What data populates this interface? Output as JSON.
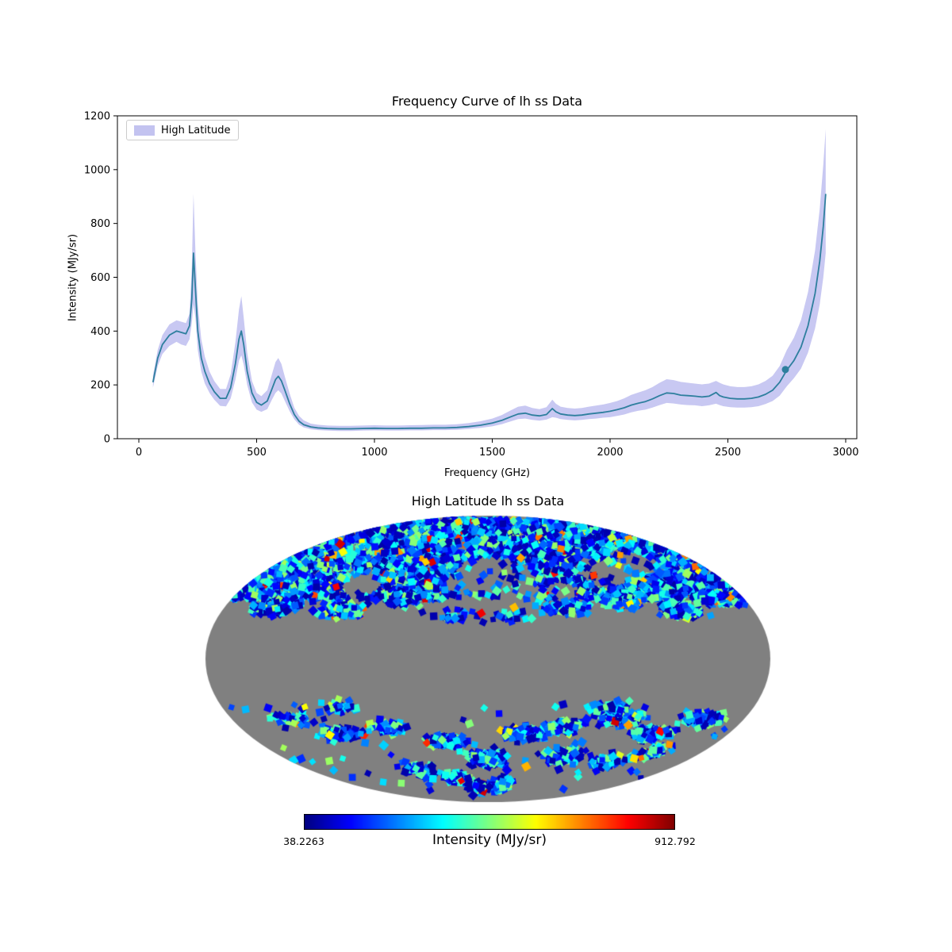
{
  "figure": {
    "background": "#ffffff"
  },
  "chart_data": [
    {
      "type": "line",
      "title": "Frequency Curve of lh ss Data",
      "xlabel": "Frequency (GHz)",
      "ylabel": "Intensity (MJy/sr)",
      "xlim": [
        -90,
        3050
      ],
      "ylim": [
        0,
        1200
      ],
      "x_ticks": [
        0,
        500,
        1000,
        1500,
        2000,
        2500,
        3000
      ],
      "y_ticks": [
        0,
        200,
        400,
        600,
        800,
        1000,
        1200
      ],
      "legend_position": "upper left",
      "grid": false,
      "marker_point": {
        "x": 2744,
        "y": 257
      },
      "series": [
        {
          "name": "High Latitude",
          "line_color": "#2e7f9e",
          "band_color": "#7b7bdf",
          "x": [
            60,
            80,
            100,
            130,
            160,
            180,
            200,
            215,
            225,
            232,
            240,
            250,
            265,
            280,
            300,
            320,
            345,
            370,
            390,
            410,
            425,
            435,
            445,
            460,
            480,
            500,
            520,
            545,
            565,
            580,
            592,
            605,
            620,
            640,
            660,
            680,
            700,
            730,
            760,
            800,
            850,
            900,
            950,
            1000,
            1050,
            1100,
            1150,
            1200,
            1250,
            1300,
            1350,
            1400,
            1450,
            1500,
            1540,
            1580,
            1610,
            1640,
            1670,
            1700,
            1730,
            1755,
            1770,
            1790,
            1820,
            1850,
            1880,
            1910,
            1940,
            1970,
            2000,
            2030,
            2060,
            2090,
            2120,
            2150,
            2180,
            2210,
            2240,
            2270,
            2300,
            2330,
            2360,
            2390,
            2420,
            2450,
            2465,
            2480,
            2510,
            2540,
            2570,
            2600,
            2630,
            2660,
            2690,
            2720,
            2750,
            2780,
            2810,
            2840,
            2870,
            2890,
            2905,
            2915
          ],
          "y": [
            210,
            300,
            350,
            385,
            400,
            395,
            390,
            420,
            520,
            690,
            560,
            400,
            300,
            250,
            205,
            175,
            150,
            150,
            190,
            280,
            370,
            400,
            350,
            250,
            170,
            135,
            125,
            140,
            185,
            220,
            232,
            215,
            180,
            130,
            90,
            65,
            52,
            44,
            40,
            38,
            37,
            37,
            38,
            39,
            38,
            38,
            39,
            39,
            40,
            40,
            42,
            45,
            50,
            58,
            68,
            82,
            92,
            95,
            88,
            85,
            90,
            112,
            100,
            92,
            88,
            86,
            88,
            92,
            95,
            98,
            102,
            108,
            115,
            125,
            132,
            138,
            148,
            160,
            170,
            168,
            162,
            160,
            158,
            155,
            158,
            172,
            160,
            155,
            150,
            148,
            148,
            150,
            155,
            165,
            180,
            210,
            255,
            290,
            340,
            420,
            540,
            660,
            790,
            910
          ],
          "y_lower": [
            190,
            270,
            315,
            345,
            360,
            350,
            345,
            370,
            430,
            500,
            450,
            330,
            250,
            205,
            170,
            145,
            122,
            120,
            150,
            220,
            290,
            310,
            275,
            200,
            135,
            108,
            100,
            110,
            145,
            170,
            180,
            168,
            140,
            102,
            72,
            52,
            42,
            35,
            32,
            30,
            29,
            29,
            30,
            31,
            30,
            30,
            31,
            31,
            32,
            32,
            33,
            36,
            40,
            46,
            54,
            65,
            73,
            75,
            70,
            67,
            71,
            80,
            78,
            73,
            70,
            68,
            70,
            73,
            75,
            78,
            80,
            85,
            90,
            98,
            104,
            108,
            116,
            125,
            133,
            131,
            127,
            125,
            124,
            121,
            124,
            130,
            125,
            121,
            117,
            116,
            116,
            117,
            121,
            129,
            140,
            160,
            195,
            225,
            260,
            320,
            410,
            500,
            600,
            690
          ],
          "y_upper": [
            235,
            330,
            385,
            425,
            440,
            435,
            430,
            465,
            640,
            910,
            700,
            500,
            370,
            305,
            250,
            215,
            185,
            185,
            240,
            360,
            480,
            530,
            450,
            320,
            215,
            170,
            158,
            180,
            240,
            285,
            300,
            278,
            230,
            168,
            115,
            85,
            68,
            56,
            52,
            49,
            48,
            48,
            49,
            50,
            49,
            49,
            50,
            51,
            52,
            52,
            54,
            58,
            65,
            75,
            88,
            106,
            119,
            123,
            114,
            110,
            117,
            145,
            130,
            119,
            114,
            112,
            114,
            119,
            123,
            127,
            133,
            140,
            150,
            163,
            172,
            180,
            192,
            208,
            221,
            218,
            211,
            208,
            205,
            202,
            205,
            215,
            208,
            202,
            195,
            192,
            192,
            195,
            202,
            215,
            234,
            270,
            330,
            375,
            440,
            545,
            700,
            855,
            1020,
            1150
          ]
        }
      ]
    },
    {
      "type": "heatmap",
      "projection": "mollweide",
      "title": "High Latitude lh ss Data",
      "masked_color": "#808080",
      "colorbar": {
        "label": "Intensity (MJy/sr)",
        "min": 38.2263,
        "max": 912.792,
        "min_label": "38.2263",
        "max_label": "912.792",
        "colormap": "jet"
      }
    }
  ]
}
